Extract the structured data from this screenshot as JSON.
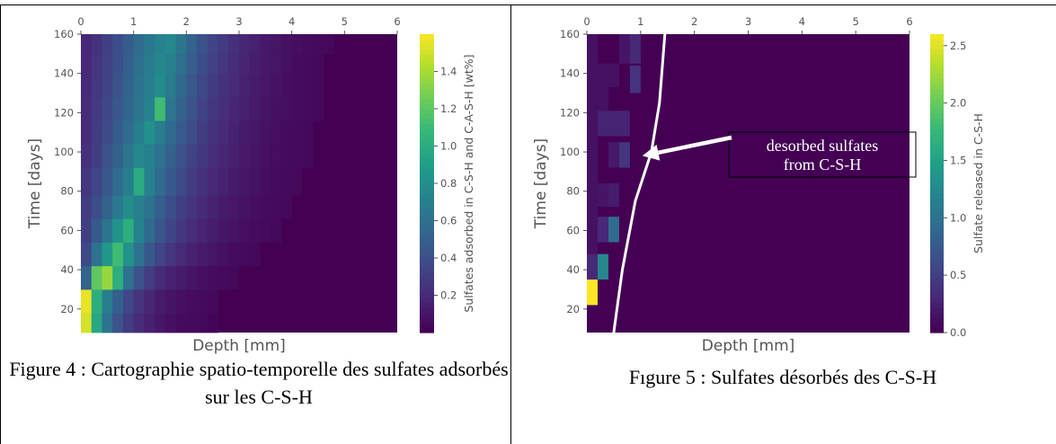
{
  "captions": {
    "figure4": "Figure 4 : Cartographie spatio-temporelle des sulfates adsorbés sur les C-S-H",
    "figure5": "Fıgure 5 : Sulfates désorbés des C-S-H"
  },
  "chart_data": [
    {
      "type": "heatmap",
      "title": "",
      "xlabel": "Depth [mm]",
      "ylabel": "Time [days]",
      "colorbar_label": "Sulfates adsorbed in C-S-H and C-A-S-H [wt%]",
      "colormap": "viridis",
      "x_axis_position": "top",
      "xlim": [
        0,
        6
      ],
      "ylim": [
        8,
        160
      ],
      "x_ticks": [
        0,
        1,
        2,
        3,
        4,
        5,
        6
      ],
      "y_ticks": [
        20,
        40,
        60,
        80,
        100,
        120,
        140,
        160
      ],
      "color_range": [
        0,
        1.6
      ],
      "colorbar_ticks": [
        0.2,
        0.4,
        0.6,
        0.8,
        1.0,
        1.2,
        1.4
      ],
      "grid": false,
      "cell_width_mm": 0.2,
      "time_bands": [
        {
          "from": 8,
          "to": 18,
          "values": [
            1.5,
            0.95,
            0.6,
            0.4,
            0.28,
            0.2,
            0.14,
            0.1,
            0.07,
            0.05,
            0.04,
            0.03,
            0.02
          ]
        },
        {
          "from": 18,
          "to": 30,
          "values": [
            1.55,
            1.0,
            0.68,
            0.48,
            0.34,
            0.24,
            0.17,
            0.12,
            0.09,
            0.07,
            0.05,
            0.04,
            0.03
          ]
        },
        {
          "from": 30,
          "to": 42,
          "values": [
            0.5,
            1.2,
            1.35,
            1.0,
            0.6,
            0.4,
            0.28,
            0.2,
            0.15,
            0.12,
            0.09,
            0.07,
            0.05,
            0.04,
            0.03
          ]
        },
        {
          "from": 42,
          "to": 54,
          "values": [
            0.35,
            0.6,
            0.85,
            1.1,
            0.82,
            0.6,
            0.44,
            0.33,
            0.25,
            0.19,
            0.15,
            0.12,
            0.09,
            0.07,
            0.05,
            0.04,
            0.03
          ]
        },
        {
          "from": 54,
          "to": 66,
          "values": [
            0.3,
            0.45,
            0.62,
            0.82,
            1.0,
            0.72,
            0.55,
            0.42,
            0.33,
            0.26,
            0.2,
            0.16,
            0.13,
            0.1,
            0.08,
            0.06,
            0.05,
            0.04,
            0.03
          ]
        },
        {
          "from": 66,
          "to": 78,
          "values": [
            0.28,
            0.38,
            0.5,
            0.65,
            0.78,
            0.7,
            0.6,
            0.48,
            0.38,
            0.3,
            0.24,
            0.19,
            0.15,
            0.12,
            0.1,
            0.08,
            0.06,
            0.05,
            0.04,
            0.03
          ]
        },
        {
          "from": 78,
          "to": 92,
          "values": [
            0.25,
            0.33,
            0.44,
            0.56,
            0.68,
            0.98,
            0.7,
            0.56,
            0.45,
            0.36,
            0.29,
            0.23,
            0.18,
            0.15,
            0.12,
            0.1,
            0.08,
            0.06,
            0.05,
            0.04,
            0.03
          ]
        },
        {
          "from": 92,
          "to": 104,
          "values": [
            0.22,
            0.3,
            0.4,
            0.5,
            0.62,
            0.75,
            0.7,
            0.6,
            0.5,
            0.4,
            0.32,
            0.26,
            0.21,
            0.17,
            0.14,
            0.11,
            0.09,
            0.07,
            0.06,
            0.05,
            0.04,
            0.03
          ]
        },
        {
          "from": 104,
          "to": 116,
          "values": [
            0.2,
            0.28,
            0.36,
            0.46,
            0.56,
            0.68,
            0.8,
            0.68,
            0.55,
            0.45,
            0.36,
            0.29,
            0.23,
            0.19,
            0.15,
            0.12,
            0.1,
            0.08,
            0.06,
            0.05,
            0.04,
            0.03
          ]
        },
        {
          "from": 116,
          "to": 128,
          "values": [
            0.2,
            0.27,
            0.34,
            0.43,
            0.53,
            0.63,
            0.72,
            1.1,
            0.62,
            0.5,
            0.4,
            0.32,
            0.26,
            0.21,
            0.17,
            0.14,
            0.11,
            0.09,
            0.07,
            0.06,
            0.05,
            0.04,
            0.03
          ]
        },
        {
          "from": 128,
          "to": 140,
          "values": [
            0.19,
            0.25,
            0.32,
            0.4,
            0.5,
            0.6,
            0.68,
            0.78,
            0.66,
            0.54,
            0.44,
            0.35,
            0.28,
            0.23,
            0.19,
            0.15,
            0.12,
            0.1,
            0.08,
            0.06,
            0.05,
            0.04,
            0.03
          ]
        },
        {
          "from": 140,
          "to": 150,
          "values": [
            0.18,
            0.24,
            0.31,
            0.39,
            0.48,
            0.58,
            0.66,
            0.74,
            0.7,
            0.58,
            0.47,
            0.38,
            0.31,
            0.25,
            0.2,
            0.16,
            0.13,
            0.11,
            0.09,
            0.07,
            0.05,
            0.04,
            0.03
          ]
        },
        {
          "from": 150,
          "to": 160,
          "values": [
            0.18,
            0.23,
            0.3,
            0.38,
            0.46,
            0.56,
            0.64,
            0.72,
            0.75,
            0.62,
            0.5,
            0.4,
            0.33,
            0.27,
            0.22,
            0.17,
            0.14,
            0.11,
            0.09,
            0.07,
            0.06,
            0.05,
            0.04,
            0.03
          ]
        }
      ]
    },
    {
      "type": "heatmap",
      "title": "",
      "xlabel": "Depth [mm]",
      "ylabel": "Time [days]",
      "colorbar_label": "Sulfate released in C-S-H",
      "colormap": "viridis",
      "x_axis_position": "top",
      "xlim": [
        0,
        6
      ],
      "ylim": [
        8,
        160
      ],
      "x_ticks": [
        0,
        1,
        2,
        3,
        4,
        5,
        6
      ],
      "y_ticks": [
        20,
        40,
        60,
        80,
        100,
        120,
        140,
        160
      ],
      "color_range": [
        0,
        2.6
      ],
      "colorbar_ticks": [
        0.0,
        0.5,
        1.0,
        1.5,
        2.0,
        2.5
      ],
      "grid": false,
      "cells": [
        {
          "x0": 0.0,
          "x1": 0.2,
          "y0": 22,
          "y1": 35,
          "v": 2.6
        },
        {
          "x0": 0.2,
          "x1": 0.4,
          "y0": 35,
          "y1": 48,
          "v": 1.2
        },
        {
          "x0": 0.0,
          "x1": 0.2,
          "y0": 35,
          "y1": 48,
          "v": 0.3
        },
        {
          "x0": 0.4,
          "x1": 0.6,
          "y0": 54,
          "y1": 67,
          "v": 0.9
        },
        {
          "x0": 0.2,
          "x1": 0.4,
          "y0": 54,
          "y1": 67,
          "v": 0.3
        },
        {
          "x0": 0.4,
          "x1": 0.6,
          "y0": 72,
          "y1": 84,
          "v": 0.2
        },
        {
          "x0": 0.2,
          "x1": 0.4,
          "y0": 72,
          "y1": 84,
          "v": 0.15
        },
        {
          "x0": 0.6,
          "x1": 0.8,
          "y0": 92,
          "y1": 105,
          "v": 0.4
        },
        {
          "x0": 0.4,
          "x1": 0.6,
          "y0": 92,
          "y1": 105,
          "v": 0.18
        },
        {
          "x0": 0.2,
          "x1": 0.8,
          "y0": 108,
          "y1": 121,
          "v": 0.25
        },
        {
          "x0": 0.2,
          "x1": 0.4,
          "y0": 121,
          "y1": 133,
          "v": 0.12
        },
        {
          "x0": 0.8,
          "x1": 1.0,
          "y0": 130,
          "y1": 144,
          "v": 0.38
        },
        {
          "x0": 0.2,
          "x1": 0.6,
          "y0": 133,
          "y1": 145,
          "v": 0.12
        },
        {
          "x0": 0.6,
          "x1": 0.8,
          "y0": 145,
          "y1": 160,
          "v": 0.15
        },
        {
          "x0": 0.8,
          "x1": 1.0,
          "y0": 145,
          "y1": 160,
          "v": 0.3
        },
        {
          "x0": 0.0,
          "x1": 0.2,
          "y0": 48,
          "y1": 160,
          "v": 0.12
        }
      ],
      "boundary_line": [
        [
          0.5,
          8
        ],
        [
          0.66,
          40
        ],
        [
          0.9,
          75
        ],
        [
          1.2,
          100
        ],
        [
          1.35,
          125
        ],
        [
          1.45,
          160
        ]
      ],
      "annotation": {
        "text_lines": [
          "desorbed sulfates",
          "from C-S-H"
        ],
        "arrow_to": [
          1.0,
          98
        ]
      }
    }
  ]
}
